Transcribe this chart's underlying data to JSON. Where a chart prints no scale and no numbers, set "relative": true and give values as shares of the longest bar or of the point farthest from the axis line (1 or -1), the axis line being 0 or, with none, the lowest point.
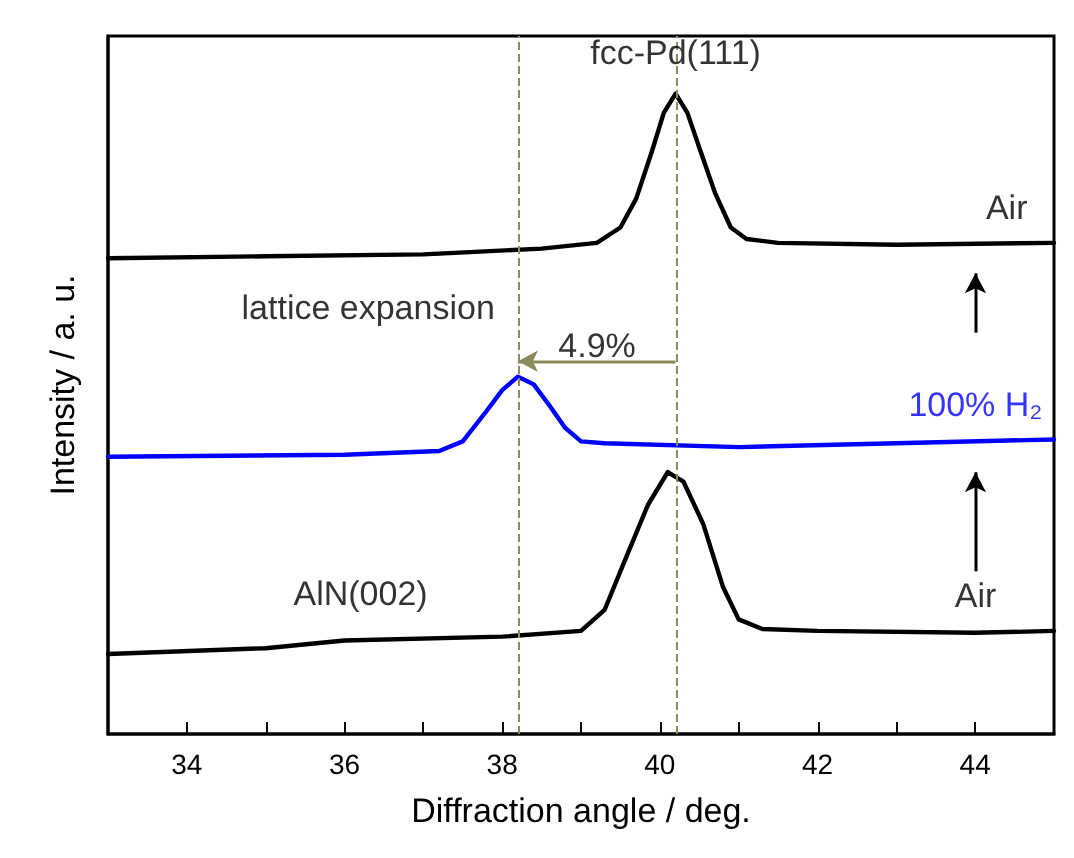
{
  "chart_data": {
    "type": "line",
    "relative": true,
    "xlabel": "Diffraction angle / deg.",
    "ylabel": "Intensity / a. u.",
    "xlim": [
      33,
      45
    ],
    "xticks": [
      34,
      {
        "value": 35,
        "label": null
      },
      36,
      {
        "value": 37,
        "label": null
      },
      38,
      {
        "value": 39,
        "label": null
      },
      40,
      {
        "value": 41,
        "label": null
      },
      42,
      {
        "value": 43,
        "label": null
      },
      44
    ],
    "grid": false,
    "marker": "none",
    "line_style": "solid",
    "series": [
      {
        "color": "#000000",
        "x": [
          33,
          35,
          37,
          38.5,
          39.2,
          39.5,
          39.7,
          39.9,
          40.05,
          40.2,
          40.35,
          40.5,
          40.7,
          40.9,
          41.1,
          41.5,
          43,
          45
        ],
        "values": [
          0.743,
          0.746,
          0.749,
          0.758,
          0.767,
          0.791,
          0.836,
          0.91,
          0.97,
          1,
          0.97,
          0.916,
          0.845,
          0.791,
          0.773,
          0.767,
          0.764,
          0.767
        ]
      },
      {
        "color": "#0000ff",
        "x": [
          33,
          36,
          37.2,
          37.5,
          37.8,
          38.0,
          38.2,
          38.4,
          38.6,
          38.8,
          39.0,
          39.3,
          41,
          43,
          45
        ],
        "values": [
          0.433,
          0.436,
          0.442,
          0.457,
          0.504,
          0.537,
          0.558,
          0.546,
          0.513,
          0.478,
          0.457,
          0.454,
          0.448,
          0.454,
          0.46
        ]
      },
      {
        "color": "#000000",
        "x": [
          33,
          35,
          36,
          38,
          39,
          39.3,
          39.6,
          39.85,
          40.1,
          40.3,
          40.55,
          40.8,
          41.0,
          41.3,
          42,
          44,
          45
        ],
        "values": [
          0.125,
          0.134,
          0.146,
          0.152,
          0.161,
          0.194,
          0.284,
          0.358,
          0.409,
          0.394,
          0.328,
          0.23,
          0.179,
          0.164,
          0.161,
          0.158,
          0.161
        ]
      }
    ],
    "ref_lines": [
      {
        "axis": "x",
        "value": 40.2,
        "color": "#8a8a5c",
        "line_style": "dashed"
      },
      {
        "axis": "x",
        "value": 38.2,
        "color": "#8a8a5c",
        "line_style": "dashed"
      }
    ],
    "annotations": [
      "fcc-Pd(111)",
      "Air",
      "lattice expansion",
      "4.9%",
      "100% H₂",
      "AlN(002)",
      "Air"
    ]
  }
}
